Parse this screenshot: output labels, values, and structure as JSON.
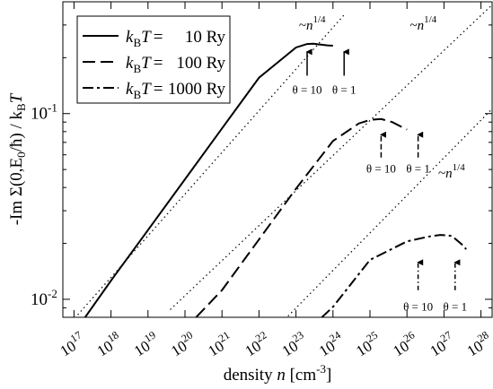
{
  "chart_data": {
    "type": "line",
    "xscale": "log",
    "yscale": "log",
    "xlim": [
      5e+16,
      2e+28
    ],
    "ylim": [
      0.008,
      0.4
    ],
    "xlabel": {
      "pre": "density ",
      "var": "n",
      "unit": " [cm",
      "exp": "-3",
      "close": "]"
    },
    "ylabel": "-Im Σ(0,E₀/ħ) / k_B T",
    "ylabel_parts": {
      "a": "-Im Σ(0,E",
      "sub0": "0",
      "b": "/ħ) / k",
      "subB": "B",
      "c": "T"
    },
    "xticks": [
      {
        "exp": 17,
        "label": "17"
      },
      {
        "exp": 18,
        "label": "18"
      },
      {
        "exp": 19,
        "label": "19"
      },
      {
        "exp": 20,
        "label": "20"
      },
      {
        "exp": 21,
        "label": "21"
      },
      {
        "exp": 22,
        "label": "22"
      },
      {
        "exp": 23,
        "label": "23"
      },
      {
        "exp": 24,
        "label": "24"
      },
      {
        "exp": 25,
        "label": "25"
      },
      {
        "exp": 26,
        "label": "26"
      },
      {
        "exp": 27,
        "label": "27"
      },
      {
        "exp": 28,
        "label": "28"
      }
    ],
    "xtick_base": "10",
    "yticks": [
      {
        "value": 0.01,
        "base": "10",
        "exp": "-2"
      },
      {
        "value": 0.1,
        "base": "10",
        "exp": "-1"
      }
    ],
    "legend_position": "top-left",
    "series": [
      {
        "name": "k_B T =    10 Ry",
        "legend": {
          "k": "k",
          "sub": "B",
          "t": "T",
          "eq": "=",
          "value": "10 Ry"
        },
        "style": "solid",
        "x": [
          2e+17,
          1e+18,
          1e+19,
          1e+20,
          1e+21,
          1e+22,
          1e+23,
          2e+23,
          3e+23,
          4e+23,
          5e+23,
          7e+23,
          1e+24
        ],
        "y": [
          0.008,
          0.0126,
          0.0236,
          0.0443,
          0.0832,
          0.156,
          0.227,
          0.237,
          0.238,
          0.236,
          0.235,
          0.233,
          0.232
        ]
      },
      {
        "name": "k_B T =  100 Ry",
        "legend": {
          "k": "k",
          "sub": "B",
          "t": "T",
          "eq": "=",
          "value": "100 Ry"
        },
        "style": "dash",
        "x": [
          2e+20,
          1e+21,
          1e+22,
          1e+23,
          1e+24,
          5e+24,
          1e+25,
          2e+25,
          4e+25,
          7e+25,
          1e+26
        ],
        "y": [
          0.008,
          0.0112,
          0.021,
          0.0394,
          0.0712,
          0.0885,
          0.0925,
          0.0935,
          0.09,
          0.085,
          0.082
        ]
      },
      {
        "name": "k_B T = 1000 Ry",
        "legend": {
          "k": "k",
          "sub": "B",
          "t": "T",
          "eq": "=",
          "value": "1000 Ry"
        },
        "style": "dashdot",
        "x": [
          5e+23,
          1e+24,
          1e+25,
          1e+26,
          4e+26,
          8e+26,
          1.5e+27,
          2e+27,
          3e+27,
          4e+27
        ],
        "y": [
          0.008,
          0.0091,
          0.0163,
          0.0205,
          0.0218,
          0.0222,
          0.022,
          0.0212,
          0.0198,
          0.0186
        ]
      }
    ],
    "reference_lines": [
      {
        "label": "~n",
        "exp": "1/4",
        "x": [
          5e+16,
          2e+24
        ],
        "y": [
          0.0067,
          0.34
        ],
        "style": "dotted"
      },
      {
        "label": "~n",
        "exp": "1/4",
        "x": [
          4e+19,
          2e+28
        ],
        "y": [
          0.0088,
          0.385
        ],
        "style": "dotted"
      },
      {
        "label": "~n",
        "exp": "1/4",
        "x": [
          5e+22,
          2e+28
        ],
        "y": [
          0.0078,
          0.106
        ],
        "style": "dotted"
      }
    ],
    "annotations": [
      {
        "text": "~n",
        "exp": "1/4",
        "x": 1.2e+23,
        "y": 0.3,
        "line": "1"
      },
      {
        "text": "~n",
        "exp": "1/4",
        "x": 1.2e+26,
        "y": 0.3,
        "line": "2"
      },
      {
        "text": "~n",
        "exp": "1/4",
        "x": 7e+26,
        "y": 0.048,
        "line": "3"
      }
    ],
    "theta_markers": [
      {
        "label": "θ = 10",
        "x": 2e+23,
        "y_label": 0.135,
        "y_arrow_from": 0.16,
        "y_arrow_to": 0.215,
        "style": "solid"
      },
      {
        "label": "θ = 1",
        "x": 2e+24,
        "y_label": 0.135,
        "y_arrow_from": 0.16,
        "y_arrow_to": 0.215,
        "style": "solid"
      },
      {
        "label": "θ = 10",
        "x": 2e+25,
        "y_label": 0.051,
        "y_arrow_from": 0.058,
        "y_arrow_to": 0.077,
        "style": "dash"
      },
      {
        "label": "θ = 1",
        "x": 2e+26,
        "y_label": 0.051,
        "y_arrow_from": 0.058,
        "y_arrow_to": 0.077,
        "style": "dash"
      },
      {
        "label": "θ = 10",
        "x": 2e+26,
        "y_label": 0.0092,
        "y_arrow_from": 0.0112,
        "y_arrow_to": 0.0158,
        "style": "dashdot"
      },
      {
        "label": "θ = 1",
        "x": 2e+27,
        "y_label": 0.0092,
        "y_arrow_from": 0.0112,
        "y_arrow_to": 0.0158,
        "style": "dashdot"
      }
    ]
  }
}
